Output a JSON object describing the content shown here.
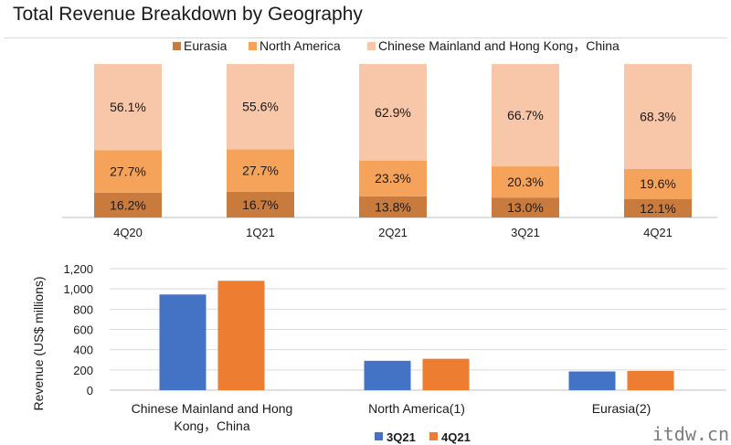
{
  "title": "Total Revenue Breakdown by Geography",
  "watermark": "itdw.cn",
  "chart_data": [
    {
      "type": "bar",
      "stacked": true,
      "percent": true,
      "categories": [
        "4Q20",
        "1Q21",
        "2Q21",
        "3Q21",
        "4Q21"
      ],
      "series": [
        {
          "name": "Eurasia",
          "color": "#c97b3e",
          "values": [
            "16.2%",
            "16.7%",
            "13.8%",
            "13.0%",
            "12.1%"
          ],
          "numeric": [
            16.2,
            16.7,
            13.8,
            13.0,
            12.1
          ]
        },
        {
          "name": "North America",
          "color": "#f5a35a",
          "values": [
            "27.7%",
            "27.7%",
            "23.3%",
            "20.3%",
            "19.6%"
          ],
          "numeric": [
            27.7,
            27.7,
            23.3,
            20.3,
            19.6
          ]
        },
        {
          "name": "Chinese Mainland and Hong Kong，China",
          "color": "#f8c6a8",
          "values": [
            "56.1%",
            "55.6%",
            "62.9%",
            "66.7%",
            "68.3%"
          ],
          "numeric": [
            56.1,
            55.6,
            62.9,
            66.7,
            68.3
          ]
        }
      ],
      "legend": "top"
    },
    {
      "type": "bar",
      "categories": [
        "Chinese Mainland and Hong Kong，China",
        "North America(1)",
        "Eurasia(2)"
      ],
      "category_lines": [
        [
          "Chinese Mainland and Hong",
          "Kong，China"
        ],
        [
          "North America(1)"
        ],
        [
          "Eurasia(2)"
        ]
      ],
      "series": [
        {
          "name": "3Q21",
          "color": "#4472c4",
          "values": [
            945,
            290,
            185
          ]
        },
        {
          "name": "4Q21",
          "color": "#ed7d31",
          "values": [
            1080,
            310,
            190
          ]
        }
      ],
      "ylabel": "Revenue (US$  millions)",
      "ylim": [
        0,
        1200
      ],
      "yticks": [
        "0",
        "200",
        "400",
        "600",
        "800",
        "1,000",
        "1,200"
      ],
      "ytick_values": [
        0,
        200,
        400,
        600,
        800,
        1000,
        1200
      ],
      "grid": true,
      "legend": "bottom"
    }
  ]
}
